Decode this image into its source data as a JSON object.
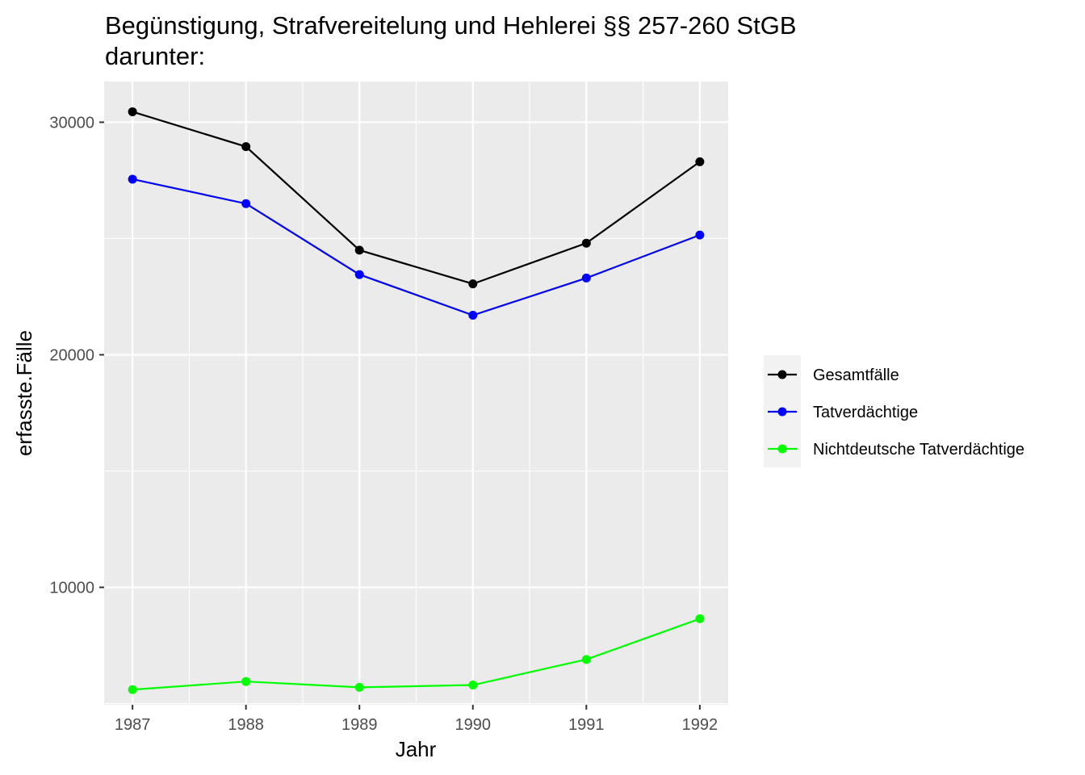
{
  "chart_data": {
    "type": "line",
    "title_lines": [
      "Begünstigung, Strafvereitelung und Hehlerei §§ 257-260 StGB",
      "darunter:"
    ],
    "xlabel": "Jahr",
    "ylabel": "erfasste.Fälle",
    "x": [
      1987,
      1988,
      1989,
      1990,
      1991,
      1992
    ],
    "x_tick_labels": [
      "1987",
      "1988",
      "1989",
      "1990",
      "1991",
      "1992"
    ],
    "y_ticks": [
      10000,
      20000,
      30000
    ],
    "y_tick_labels": [
      "10000",
      "20000",
      "30000"
    ],
    "ylim": [
      4950,
      31750
    ],
    "grid": true,
    "legend_position": "right",
    "series": [
      {
        "name": "Gesamtfälle",
        "color": "#000000",
        "values": [
          30450,
          28950,
          24500,
          23050,
          24800,
          28300
        ]
      },
      {
        "name": "Tatverdächtige",
        "color": "#0000ff",
        "values": [
          27550,
          26500,
          23450,
          21700,
          23300,
          25150
        ]
      },
      {
        "name": "Nichtdeutsche Tatverdächtige",
        "color": "#00ff00",
        "values": [
          5600,
          5950,
          5700,
          5800,
          6900,
          8650
        ]
      }
    ]
  }
}
